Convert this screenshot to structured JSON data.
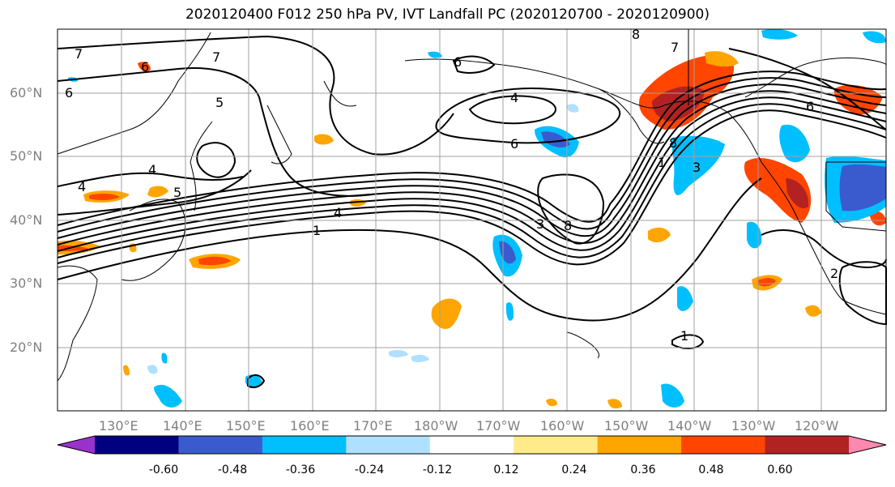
{
  "title": "2020120400 F012 250 hPa PV, IVT Landfall PC (2020120700 - 2020120900)",
  "lat_labels": [
    "60°N",
    "50°N",
    "40°N",
    "30°N",
    "20°N"
  ],
  "lon_labels": [
    "130°E",
    "140°E",
    "150°E",
    "160°E",
    "170°E",
    "180°W",
    "170°W",
    "160°W",
    "150°W",
    "140°W",
    "130°W",
    "120°W"
  ],
  "contour_labels": [
    "7",
    "7",
    "6",
    "6",
    "5",
    "4",
    "4",
    "5",
    "4",
    "1",
    "8",
    "7",
    "6",
    "4",
    "6",
    "8",
    "1",
    "3",
    "3",
    "8",
    "6",
    "1",
    "2"
  ],
  "colorbar": {
    "ticks": [
      "-0.60",
      "-0.48",
      "-0.36",
      "-0.24",
      "-0.12",
      "0.12",
      "0.24",
      "0.36",
      "0.48",
      "0.60"
    ],
    "colors": [
      "#9932CC",
      "#000080",
      "#3A5BCD",
      "#00BFFF",
      "#B0E0FF",
      "#FFFFFF",
      "#FFEB8A",
      "#FFA500",
      "#FF4500",
      "#B22222",
      "#FF88B0"
    ]
  }
}
